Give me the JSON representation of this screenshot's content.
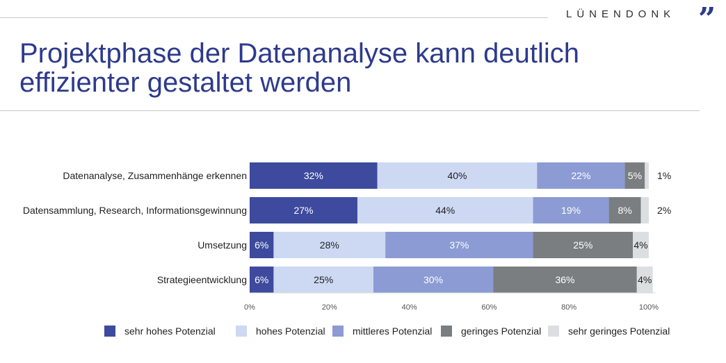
{
  "brand": {
    "name": "LÜNENDONK",
    "mark": "”"
  },
  "title": "Projektphase der Datenanalyse kann deutlich effizienter gestaltet werden",
  "colors": {
    "title": "#2d3a8c",
    "series": [
      "#3d4a9e",
      "#cdd9f3",
      "#8c9bd3",
      "#7a7e80",
      "#dcdfe1"
    ],
    "label_light": "#ffffff",
    "label_dark": "#1f1f1f"
  },
  "chart_data": {
    "type": "bar",
    "orientation": "horizontal",
    "stacked": true,
    "categories": [
      "Datenanalyse, Zusammenhänge erkennen",
      "Datensammlung, Research, Informationsgewinnung",
      "Umsetzung",
      "Strategieentwicklung"
    ],
    "series": [
      {
        "name": "sehr hohes Potenzial",
        "values": [
          32,
          27,
          6,
          6
        ],
        "labels": [
          "32%",
          "27%",
          "6%",
          "6%"
        ]
      },
      {
        "name": "hohes Potenzial",
        "values": [
          40,
          44,
          28,
          25
        ],
        "labels": [
          "40%",
          "44%",
          "28%",
          "25%"
        ]
      },
      {
        "name": "mittleres Potenzial",
        "values": [
          22,
          19,
          37,
          30
        ],
        "labels": [
          "22%",
          "19%",
          "37%",
          "30%"
        ]
      },
      {
        "name": "geringes Potenzial",
        "values": [
          5,
          8,
          25,
          36
        ],
        "labels": [
          "5%",
          "8%",
          "25%",
          "36%"
        ]
      },
      {
        "name": "sehr geringes Potenzial",
        "values": [
          1,
          2,
          4,
          4
        ],
        "labels": [
          "1%",
          "2%",
          "4%",
          "4%"
        ]
      }
    ],
    "xlim": [
      0,
      100
    ],
    "xticks": [
      "0%",
      "20%",
      "40%",
      "60%",
      "80%",
      "100%"
    ],
    "legend": {
      "position": "bottom"
    },
    "grid": false
  }
}
